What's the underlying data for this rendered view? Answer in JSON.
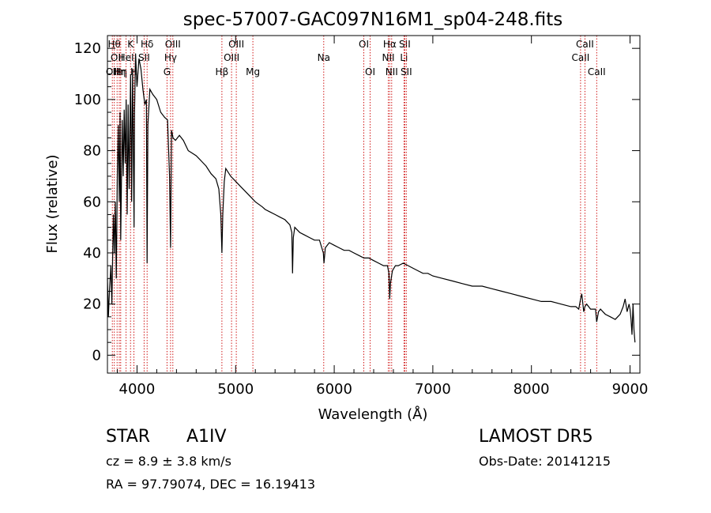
{
  "chart_data": {
    "type": "line",
    "title": "spec-57007-GAC097N16M1_sp04-248.fits",
    "xlabel": "Wavelength (Å)",
    "ylabel": "Flux (relative)",
    "xlim": [
      3700,
      9100
    ],
    "ylim": [
      -7,
      125
    ],
    "xticks": [
      4000,
      5000,
      6000,
      7000,
      8000,
      9000
    ],
    "yticks": [
      0,
      20,
      40,
      60,
      80,
      100,
      120
    ],
    "line_color": "#000000",
    "marker_color": "#cc0000",
    "spectrum": {
      "x": [
        3700,
        3710,
        3720,
        3735,
        3745,
        3760,
        3770,
        3780,
        3790,
        3800,
        3810,
        3820,
        3828,
        3835,
        3850,
        3860,
        3870,
        3880,
        3890,
        3900,
        3910,
        3920,
        3935,
        3945,
        3955,
        3965,
        3970,
        3975,
        3985,
        4000,
        4020,
        4040,
        4060,
        4080,
        4095,
        4102,
        4110,
        4130,
        4160,
        4200,
        4240,
        4280,
        4310,
        4330,
        4340,
        4350,
        4365,
        4390,
        4430,
        4470,
        4520,
        4560,
        4600,
        4650,
        4700,
        4750,
        4800,
        4830,
        4850,
        4861,
        4870,
        4885,
        4900,
        4950,
        5000,
        5050,
        5100,
        5150,
        5200,
        5270,
        5300,
        5350,
        5400,
        5450,
        5500,
        5550,
        5570,
        5577,
        5585,
        5600,
        5650,
        5700,
        5750,
        5800,
        5850,
        5890,
        5896,
        5910,
        5950,
        6000,
        6050,
        6100,
        6150,
        6200,
        6250,
        6300,
        6350,
        6400,
        6450,
        6500,
        6540,
        6555,
        6563,
        6570,
        6590,
        6620,
        6650,
        6700,
        6750,
        6800,
        6850,
        6900,
        6950,
        7000,
        7100,
        7200,
        7300,
        7400,
        7500,
        7600,
        7700,
        7800,
        7900,
        8000,
        8100,
        8200,
        8300,
        8400,
        8450,
        8480,
        8498,
        8510,
        8530,
        8542,
        8560,
        8600,
        8650,
        8662,
        8680,
        8700,
        8750,
        8800,
        8850,
        8900,
        8930,
        8950,
        8970,
        8990,
        9000,
        9010,
        9020,
        9030,
        9040,
        9050
      ],
      "y": [
        30,
        15,
        25,
        35,
        20,
        55,
        40,
        60,
        30,
        70,
        90,
        60,
        95,
        45,
        92,
        70,
        96,
        75,
        100,
        55,
        98,
        65,
        110,
        60,
        112,
        70,
        50,
        95,
        118,
        105,
        116,
        112,
        104,
        98,
        100,
        36,
        90,
        104,
        102,
        100,
        95,
        93,
        92,
        70,
        42,
        88,
        85,
        84,
        86,
        84,
        80,
        79,
        78,
        76,
        74,
        71,
        69,
        65,
        55,
        40,
        55,
        68,
        73,
        70,
        68,
        66,
        64,
        62,
        60,
        58,
        57,
        56,
        55,
        54,
        53,
        51,
        48,
        32,
        46,
        50,
        48,
        47,
        46,
        45,
        45,
        40,
        36,
        42,
        44,
        43,
        42,
        41,
        41,
        40,
        39,
        38,
        38,
        37,
        36,
        35,
        35,
        32,
        22,
        28,
        33,
        35,
        35,
        36,
        35,
        34,
        33,
        32,
        32,
        31,
        30,
        29,
        28,
        27,
        27,
        26,
        25,
        24,
        23,
        22,
        21,
        21,
        20,
        19,
        19,
        18,
        22,
        24,
        17,
        19,
        20,
        18,
        18,
        13,
        17,
        18,
        16,
        15,
        14,
        16,
        19,
        22,
        17,
        20,
        18,
        14,
        8,
        20,
        10,
        5
      ]
    },
    "lines": [
      {
        "wl": 3750,
        "labels": [
          "OII"
        ],
        "row": 2
      },
      {
        "wl": 3770,
        "labels": [
          "Hθ"
        ],
        "row": 0
      },
      {
        "wl": 3798,
        "labels": [
          "OII"
        ],
        "row": 1
      },
      {
        "wl": 3820,
        "labels": [
          "Hη"
        ],
        "row": 2
      },
      {
        "wl": 3835,
        "labels": [
          "Hη"
        ],
        "row": 2
      },
      {
        "wl": 3889,
        "labels": [
          "HeI"
        ],
        "row": 1
      },
      {
        "wl": 3934,
        "labels": [
          "K"
        ],
        "row": 0
      },
      {
        "wl": 3968,
        "labels": [
          "H"
        ],
        "row": 2
      },
      {
        "wl": 4072,
        "labels": [
          "SII"
        ],
        "row": 1
      },
      {
        "wl": 4102,
        "labels": [
          "Hδ"
        ],
        "row": 0
      },
      {
        "wl": 4304,
        "labels": [
          "G"
        ],
        "row": 2
      },
      {
        "wl": 4340,
        "labels": [
          "Hγ"
        ],
        "row": 1
      },
      {
        "wl": 4363,
        "labels": [
          "OIII"
        ],
        "row": 0
      },
      {
        "wl": 4861,
        "labels": [
          "Hβ"
        ],
        "row": 2
      },
      {
        "wl": 4959,
        "labels": [
          "OIII"
        ],
        "row": 1
      },
      {
        "wl": 5007,
        "labels": [
          "OIII"
        ],
        "row": 0
      },
      {
        "wl": 5175,
        "labels": [
          "Mg"
        ],
        "row": 2
      },
      {
        "wl": 5894,
        "labels": [
          "Na"
        ],
        "row": 1
      },
      {
        "wl": 6300,
        "labels": [
          "OI"
        ],
        "row": 0
      },
      {
        "wl": 6364,
        "labels": [
          "OI"
        ],
        "row": 2
      },
      {
        "wl": 6548,
        "labels": [
          "NII"
        ],
        "row": 1
      },
      {
        "wl": 6563,
        "labels": [
          "Hα"
        ],
        "row": 0
      },
      {
        "wl": 6583,
        "labels": [
          "NII"
        ],
        "row": 2
      },
      {
        "wl": 6708,
        "labels": [
          "Li"
        ],
        "row": 1
      },
      {
        "wl": 6716,
        "labels": [
          "SII"
        ],
        "row": 0
      },
      {
        "wl": 6731,
        "labels": [
          "SII"
        ],
        "row": 2
      },
      {
        "wl": 8498,
        "labels": [
          "CaII"
        ],
        "row": 1
      },
      {
        "wl": 8542,
        "labels": [
          "CaII"
        ],
        "row": 0
      },
      {
        "wl": 8662,
        "labels": [
          "CaII"
        ],
        "row": 2
      }
    ]
  },
  "footer": {
    "class_label": "STAR",
    "subclass": "A1IV",
    "survey": "LAMOST DR5",
    "cz": "cz = 8.9 ± 3.8 km/s",
    "obs_date": "Obs-Date: 20141215",
    "coords": "RA =  97.79074, DEC =  16.19413"
  }
}
